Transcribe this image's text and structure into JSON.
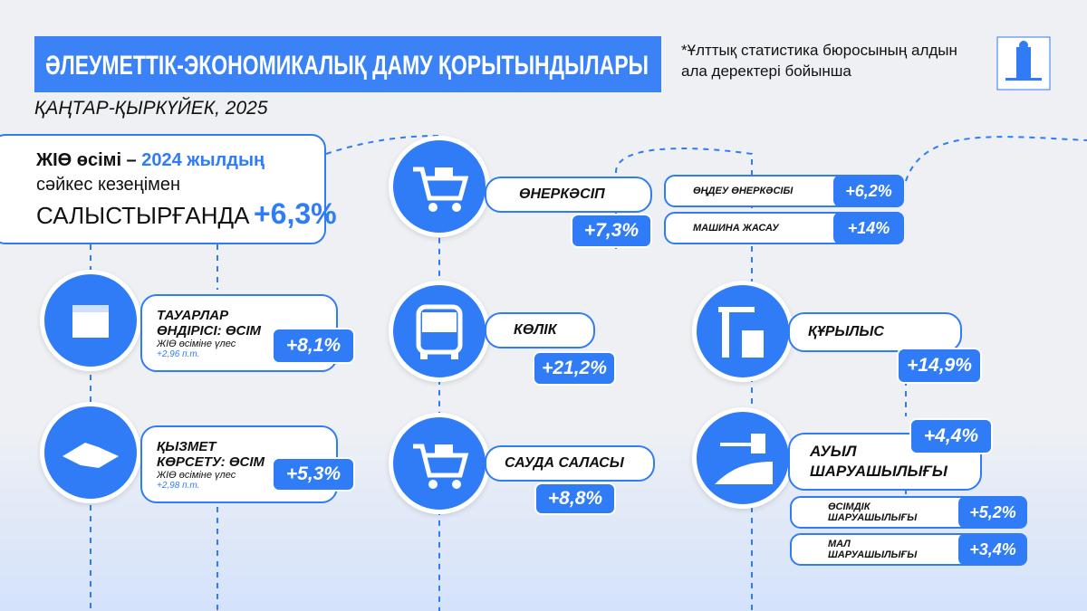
{
  "header": {
    "title": "ӘЛЕУМЕТТІК-ЭКОНОМИКАЛЫҚ ДАМУ ҚОРЫТЫНДЫЛАРЫ",
    "period": "ҚАҢТАР-ҚЫРКҮЙЕК, 2025",
    "source_note": "*Ұлттық статистика бюросының алдын ала деректері бойынша"
  },
  "gdp": {
    "line1_a": "ЖІӨ өсімі –",
    "line1_b": "2024 жылдың",
    "line2": "сәйкес кезеңімен",
    "line3": "САЛЫСТЫРҒАНДА",
    "value": "+6,3%"
  },
  "goods": {
    "title": "ТАУАРЛАР ӨНДІРІСІ: ӨСІМ",
    "contribution_label": "ЖІӨ өсіміне үлес",
    "contribution": "+2,96 п.т.",
    "value": "+8,1%"
  },
  "services": {
    "title": "ҚЫЗМЕТ КӨРСЕТУ: ӨСІМ",
    "contribution_label": "ЖІӨ өсіміне үлес",
    "contribution": "+2,98 п.т.",
    "value": "+5,3%"
  },
  "industry": {
    "title": "ӨНЕРКӘСІП",
    "value": "+7,3%",
    "subs": [
      {
        "label": "ӨҢДЕУ ӨНЕРКӘСІБІ",
        "value": "+6,2%"
      },
      {
        "label": "МАШИНА ЖАСАУ",
        "value": "+14%"
      }
    ]
  },
  "transport": {
    "title": "КӨЛІК",
    "value": "+21,2%"
  },
  "trade": {
    "title": "САУДА САЛАСЫ",
    "value": "+8,8%"
  },
  "construction": {
    "title": "ҚҰРЫЛЫС",
    "value": "+14,9%"
  },
  "agriculture": {
    "title": "АУЫЛ ШАРУАШЫЛЫҒЫ",
    "value": "+4,4%",
    "subs": [
      {
        "label": "ӨСІМДІК ШАРУАШЫЛЫҒЫ",
        "value": "+5,2%"
      },
      {
        "label": "МАЛ ШАРУАШЫЛЫҒЫ",
        "value": "+3,4%"
      }
    ]
  }
}
